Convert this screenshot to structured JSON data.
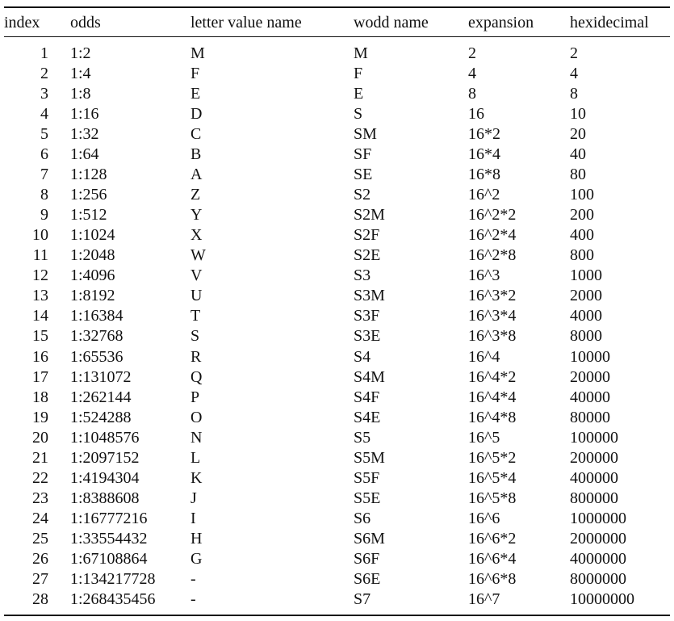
{
  "table": {
    "headers": [
      "index",
      "odds",
      "letter value name",
      "wodd name",
      "expansion",
      "hexidecimal"
    ],
    "rows": [
      [
        "1",
        "1:2",
        "M",
        "M",
        "2",
        "2"
      ],
      [
        "2",
        "1:4",
        "F",
        "F",
        "4",
        "4"
      ],
      [
        "3",
        "1:8",
        "E",
        "E",
        "8",
        "8"
      ],
      [
        "4",
        "1:16",
        "D",
        "S",
        "16",
        "10"
      ],
      [
        "5",
        "1:32",
        "C",
        "SM",
        "16*2",
        "20"
      ],
      [
        "6",
        "1:64",
        "B",
        "SF",
        "16*4",
        "40"
      ],
      [
        "7",
        "1:128",
        "A",
        "SE",
        "16*8",
        "80"
      ],
      [
        "8",
        "1:256",
        "Z",
        "S2",
        "16^2",
        "100"
      ],
      [
        "9",
        "1:512",
        "Y",
        "S2M",
        "16^2*2",
        "200"
      ],
      [
        "10",
        "1:1024",
        "X",
        "S2F",
        "16^2*4",
        "400"
      ],
      [
        "11",
        "1:2048",
        "W",
        "S2E",
        "16^2*8",
        "800"
      ],
      [
        "12",
        "1:4096",
        "V",
        "S3",
        "16^3",
        "1000"
      ],
      [
        "13",
        "1:8192",
        "U",
        "S3M",
        "16^3*2",
        "2000"
      ],
      [
        "14",
        "1:16384",
        "T",
        "S3F",
        "16^3*4",
        "4000"
      ],
      [
        "15",
        "1:32768",
        "S",
        "S3E",
        "16^3*8",
        "8000"
      ],
      [
        "16",
        "1:65536",
        "R",
        "S4",
        "16^4",
        "10000"
      ],
      [
        "17",
        "1:131072",
        "Q",
        "S4M",
        "16^4*2",
        "20000"
      ],
      [
        "18",
        "1:262144",
        "P",
        "S4F",
        "16^4*4",
        "40000"
      ],
      [
        "19",
        "1:524288",
        "O",
        "S4E",
        "16^4*8",
        "80000"
      ],
      [
        "20",
        "1:1048576",
        "N",
        "S5",
        "16^5",
        "100000"
      ],
      [
        "21",
        "1:2097152",
        "L",
        "S5M",
        "16^5*2",
        "200000"
      ],
      [
        "22",
        "1:4194304",
        "K",
        "S5F",
        "16^5*4",
        "400000"
      ],
      [
        "23",
        "1:8388608",
        "J",
        "S5E",
        "16^5*8",
        "800000"
      ],
      [
        "24",
        "1:16777216",
        "I",
        "S6",
        "16^6",
        "1000000"
      ],
      [
        "25",
        "1:33554432",
        "H",
        "S6M",
        "16^6*2",
        "2000000"
      ],
      [
        "26",
        "1:67108864",
        "G",
        "S6F",
        "16^6*4",
        "4000000"
      ],
      [
        "27",
        "1:134217728",
        "-",
        "S6E",
        "16^6*8",
        "8000000"
      ],
      [
        "28",
        "1:268435456",
        "-",
        "S7",
        "16^7",
        "10000000"
      ]
    ]
  }
}
